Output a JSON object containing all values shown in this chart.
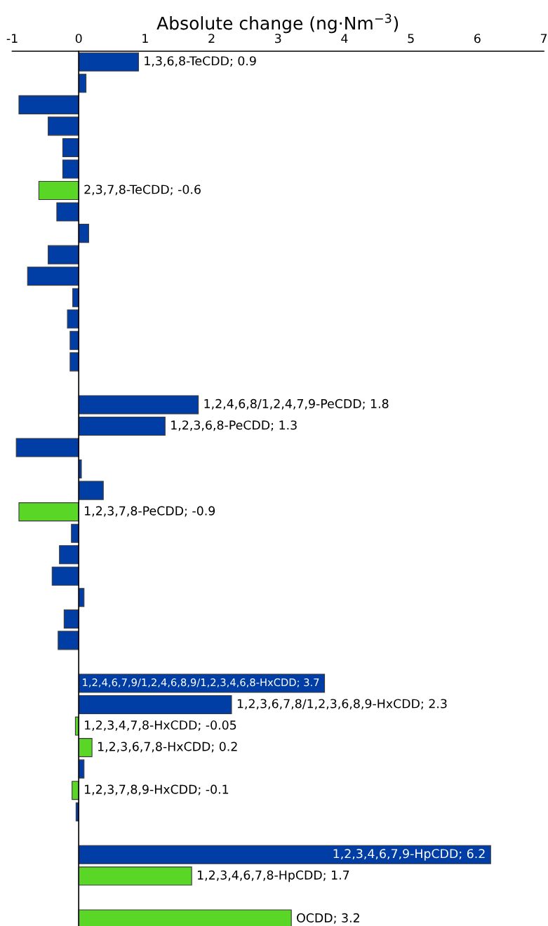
{
  "chart_data": {
    "type": "bar",
    "orientation": "horizontal",
    "xlabel": "Absolute change (ng·Nm$^{−3}$)",
    "categories": [
      null,
      null,
      null,
      null,
      null,
      null,
      null,
      null,
      null,
      null,
      null,
      null,
      null,
      null,
      null,
      null,
      null,
      null,
      null,
      null,
      null,
      null,
      null,
      null,
      null,
      null,
      null,
      null,
      null,
      null,
      null,
      null,
      null,
      null,
      null,
      null,
      null,
      null,
      null,
      null,
      null
    ],
    "values": [
      0.9,
      0.11,
      -0.9,
      -0.46,
      -0.24,
      -0.24,
      -0.6,
      -0.33,
      0.15,
      -0.46,
      -0.77,
      -0.09,
      -0.17,
      -0.13,
      -0.13,
      null,
      1.8,
      1.3,
      -0.94,
      0.04,
      0.37,
      -0.9,
      -0.11,
      -0.29,
      -0.4,
      0.08,
      -0.22,
      -0.31,
      null,
      3.7,
      2.3,
      -0.05,
      0.2,
      0.08,
      -0.1,
      -0.04,
      null,
      6.2,
      1.7,
      null,
      3.2
    ],
    "colors": [
      "#003da5",
      "#003da5",
      "#003da5",
      "#003da5",
      "#003da5",
      "#003da5",
      "#5ad726",
      "#003da5",
      "#003da5",
      "#003da5",
      "#003da5",
      "#003da5",
      "#003da5",
      "#003da5",
      "#003da5",
      null,
      "#003da5",
      "#003da5",
      "#003da5",
      "#003da5",
      "#003da5",
      "#5ad726",
      "#003da5",
      "#003da5",
      "#003da5",
      "#003da5",
      "#003da5",
      "#003da5",
      null,
      "#003da5",
      "#003da5",
      "#5ad726",
      "#5ad726",
      "#003da5",
      "#5ad726",
      "#003da5",
      null,
      "#003da5",
      "#5ad726",
      null,
      "#5ad726"
    ],
    "value_labels": [
      "1,3,6,8-TeCDD; 0.9",
      null,
      null,
      null,
      null,
      null,
      "2,3,7,8-TeCDD; -0.6",
      null,
      null,
      null,
      null,
      null,
      null,
      null,
      null,
      null,
      "1,2,4,6,8/1,2,4,7,9-PeCDD; 1.8",
      "1,2,3,6,8-PeCDD; 1.3",
      null,
      null,
      null,
      "1,2,3,7,8-PeCDD; -0.9",
      null,
      null,
      null,
      null,
      null,
      null,
      null,
      "1,2,4,6,7,9/1,2,4,6,8,9/1,2,3,4,6,8-HxCDD; 3.7",
      "1,2,3,6,7,8/1,2,3,6,8,9-HxCDD; 2.3",
      "1,2,3,4,7,8-HxCDD; -0.05",
      "1,2,3,6,7,8-HxCDD; 0.2",
      null,
      "1,2,3,7,8,9-HxCDD; -0.1",
      null,
      null,
      "1,2,3,4,6,7,9-HpCDD; 6.2",
      "1,2,3,4,6,7,8-HpCDD; 1.7",
      null,
      "OCDD; 3.2"
    ],
    "xlim": [
      -1,
      7
    ],
    "xticks": [
      -1,
      0,
      1,
      2,
      3,
      4,
      5,
      6,
      7
    ],
    "legend": false
  }
}
